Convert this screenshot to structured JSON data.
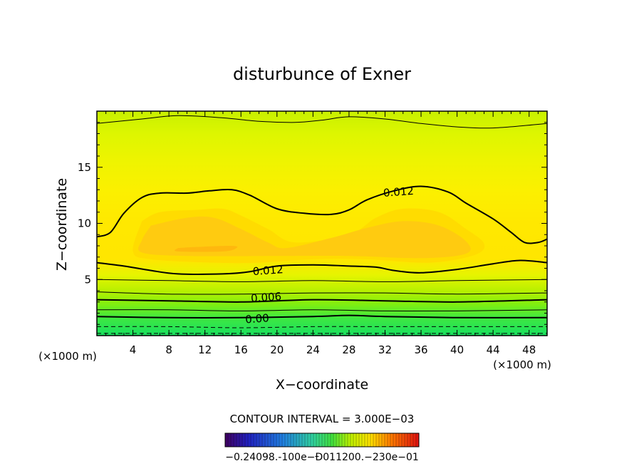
{
  "chart_data": {
    "type": "contour",
    "title": "disturbunce of Exner",
    "xlabel": "X−coordinate",
    "ylabel": "Z−coordinate",
    "x_unit_left": "(×1000 m)",
    "x_unit_right": "(×1000 m)",
    "xlim": [
      0,
      50
    ],
    "ylim": [
      0,
      20
    ],
    "x_ticks": [
      4,
      8,
      12,
      16,
      20,
      24,
      28,
      32,
      36,
      40,
      44,
      48
    ],
    "y_ticks": [
      5,
      10,
      15
    ],
    "contour_interval_text": "CONTOUR INTERVAL = 3.000E−03",
    "contour_labels": [
      {
        "text": "0.012",
        "x": 33.5,
        "y": 12.8
      },
      {
        "text": "0.012",
        "x": 19,
        "y": 5.8
      },
      {
        "text": "0.006",
        "x": 18.8,
        "y": 3.4
      },
      {
        "text": "0.00",
        "x": 17.8,
        "y": 1.5
      }
    ],
    "contours": [
      {
        "level": "0.012",
        "weight": "heavy",
        "points": [
          [
            0,
            8.8
          ],
          [
            1.5,
            9.2
          ],
          [
            3,
            10.9
          ],
          [
            5,
            12.3
          ],
          [
            7,
            12.7
          ],
          [
            10,
            12.7
          ],
          [
            12.5,
            12.9
          ],
          [
            15,
            13.0
          ],
          [
            17,
            12.5
          ],
          [
            20,
            11.3
          ],
          [
            23,
            10.9
          ],
          [
            26,
            10.8
          ],
          [
            28,
            11.2
          ],
          [
            30,
            12.1
          ],
          [
            33,
            12.9
          ],
          [
            36,
            13.3
          ],
          [
            39,
            12.8
          ],
          [
            41,
            11.8
          ],
          [
            44,
            10.4
          ],
          [
            46,
            9.2
          ],
          [
            47.5,
            8.3
          ],
          [
            49,
            8.3
          ],
          [
            50,
            8.6
          ]
        ]
      },
      {
        "level": "0.012",
        "weight": "heavy",
        "points": [
          [
            0,
            6.5
          ],
          [
            3,
            6.2
          ],
          [
            6,
            5.8
          ],
          [
            9,
            5.5
          ],
          [
            14,
            5.5
          ],
          [
            17,
            5.7
          ],
          [
            20,
            6.2
          ],
          [
            24,
            6.3
          ],
          [
            28,
            6.2
          ],
          [
            31,
            6.1
          ],
          [
            33,
            5.8
          ],
          [
            36,
            5.6
          ],
          [
            40,
            5.9
          ],
          [
            44,
            6.4
          ],
          [
            47,
            6.7
          ],
          [
            50,
            6.5
          ]
        ]
      },
      {
        "level": "0.009",
        "weight": "light",
        "points": [
          [
            0,
            5.0
          ],
          [
            8,
            4.9
          ],
          [
            16,
            4.8
          ],
          [
            24,
            4.9
          ],
          [
            32,
            4.8
          ],
          [
            40,
            4.9
          ],
          [
            50,
            5.0
          ]
        ]
      },
      {
        "level": "0.006",
        "weight": "light",
        "points": [
          [
            0,
            3.9
          ],
          [
            8,
            3.7
          ],
          [
            16,
            3.7
          ],
          [
            24,
            3.8
          ],
          [
            32,
            3.8
          ],
          [
            40,
            3.7
          ],
          [
            50,
            3.8
          ]
        ]
      },
      {
        "level": "0.006",
        "weight": "heavy",
        "points": [
          [
            0,
            3.2
          ],
          [
            8,
            3.1
          ],
          [
            16,
            3.0
          ],
          [
            24,
            3.2
          ],
          [
            32,
            3.1
          ],
          [
            40,
            3.0
          ],
          [
            50,
            3.2
          ]
        ]
      },
      {
        "level": "0.003",
        "weight": "light",
        "points": [
          [
            0,
            2.3
          ],
          [
            8,
            2.3
          ],
          [
            16,
            2.2
          ],
          [
            24,
            2.3
          ],
          [
            32,
            2.2
          ],
          [
            40,
            2.2
          ],
          [
            50,
            2.3
          ]
        ]
      },
      {
        "level": "0.00",
        "weight": "heavy",
        "points": [
          [
            0,
            1.7
          ],
          [
            8,
            1.6
          ],
          [
            16,
            1.6
          ],
          [
            24,
            1.7
          ],
          [
            28,
            1.8
          ],
          [
            32,
            1.7
          ],
          [
            40,
            1.6
          ],
          [
            50,
            1.6
          ]
        ]
      },
      {
        "level": "-0.003",
        "weight": "dashed",
        "points": [
          [
            0,
            0.8
          ],
          [
            8,
            0.8
          ],
          [
            16,
            0.7
          ],
          [
            24,
            0.8
          ],
          [
            32,
            0.8
          ],
          [
            40,
            0.8
          ],
          [
            50,
            0.8
          ]
        ]
      },
      {
        "level": "-0.006",
        "weight": "dashed",
        "points": [
          [
            0,
            0.2
          ],
          [
            16,
            0.2
          ],
          [
            32,
            0.2
          ],
          [
            50,
            0.2
          ]
        ]
      },
      {
        "level": "0.006",
        "weight": "light",
        "points": [
          [
            0,
            18.9
          ],
          [
            5,
            19.3
          ],
          [
            9,
            19.6
          ],
          [
            14,
            19.4
          ],
          [
            18,
            19.1
          ],
          [
            22,
            19.0
          ],
          [
            25,
            19.2
          ],
          [
            28,
            19.5
          ],
          [
            32,
            19.3
          ],
          [
            36,
            18.9
          ],
          [
            40,
            18.6
          ],
          [
            44,
            18.5
          ],
          [
            50,
            18.9
          ]
        ]
      }
    ],
    "fill_levels": [
      {
        "color": "#ffdc00",
        "points": [
          [
            5,
            10.2
          ],
          [
            7,
            11.0
          ],
          [
            11,
            11.2
          ],
          [
            14,
            11.3
          ],
          [
            16,
            10.7
          ],
          [
            19,
            9.5
          ],
          [
            22,
            8.3
          ],
          [
            28,
            9.0
          ],
          [
            31,
            10.5
          ],
          [
            34,
            11.3
          ],
          [
            38,
            11.0
          ],
          [
            41,
            9.5
          ],
          [
            43,
            8.2
          ],
          [
            42,
            7.2
          ],
          [
            37,
            6.5
          ],
          [
            30,
            6.8
          ],
          [
            24,
            6.8
          ],
          [
            18,
            6.5
          ],
          [
            13,
            6.5
          ],
          [
            6,
            6.8
          ],
          [
            4,
            7.5
          ]
        ]
      },
      {
        "color": "#ffcb10",
        "points": [
          [
            6,
            9.8
          ],
          [
            10,
            10.5
          ],
          [
            13,
            10.5
          ],
          [
            16,
            9.5
          ],
          [
            19,
            8.3
          ],
          [
            21,
            7.8
          ],
          [
            26,
            8.7
          ],
          [
            30,
            9.6
          ],
          [
            34,
            10.2
          ],
          [
            38,
            9.8
          ],
          [
            41,
            8.4
          ],
          [
            41,
            7.3
          ],
          [
            36,
            6.9
          ],
          [
            28,
            7.1
          ],
          [
            20,
            7.1
          ],
          [
            10,
            7.1
          ],
          [
            5,
            7.4
          ],
          [
            5,
            8.5
          ]
        ]
      },
      {
        "color": "#ffb80e",
        "points": [
          [
            9,
            7.8
          ],
          [
            11,
            7.9
          ],
          [
            15,
            8.0
          ],
          [
            15.5,
            7.8
          ],
          [
            14,
            7.5
          ],
          [
            9,
            7.5
          ]
        ]
      }
    ],
    "colorbar_labels": "−0.24098.‐100e−Đ011200.−230e−01",
    "grid": false
  }
}
